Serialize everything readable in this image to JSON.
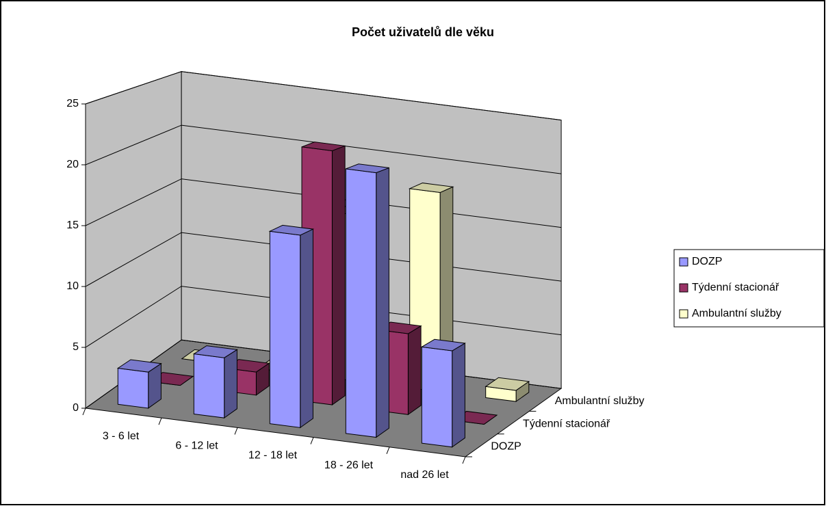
{
  "chart_data": {
    "type": "bar3d",
    "title": "Počet uživatelů dle věku",
    "categories": [
      "3 - 6 let",
      "6 - 12 let",
      "12 - 18 let",
      "18 - 26 let",
      "nad 26 let"
    ],
    "series": [
      {
        "name": "DOZP",
        "color": "#9999ff",
        "values": [
          3,
          5,
          16,
          22,
          8
        ]
      },
      {
        "name": "Týdenní stacionář",
        "color": "#993366",
        "values": [
          0,
          2,
          22,
          7,
          0
        ]
      },
      {
        "name": "Ambulantní služby",
        "color": "#ffffcc",
        "values": [
          0,
          0,
          15,
          18,
          1
        ]
      }
    ],
    "ylim": [
      0,
      25
    ],
    "yticks": [
      0,
      5,
      10,
      15,
      20,
      25
    ],
    "grid": true,
    "legend": "right"
  }
}
